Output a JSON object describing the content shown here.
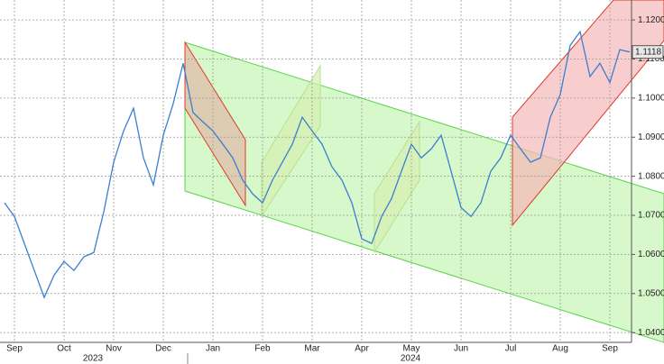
{
  "chart_data": {
    "type": "line",
    "categories": [
      null,
      "Sep",
      null,
      null,
      null,
      null,
      "Oct",
      null,
      null,
      null,
      null,
      "Nov",
      null,
      null,
      null,
      null,
      "Dec",
      null,
      null,
      null,
      null,
      "Jan",
      null,
      null,
      null,
      null,
      "Feb",
      null,
      null,
      null,
      null,
      "Mar",
      null,
      null,
      null,
      null,
      "Apr",
      null,
      null,
      null,
      null,
      "May",
      null,
      null,
      null,
      null,
      "Jun",
      null,
      null,
      null,
      null,
      "Jul",
      null,
      null,
      null,
      null,
      "Aug",
      null,
      null,
      null,
      null,
      "Sep",
      null,
      null
    ],
    "years": [
      "2023",
      "2024"
    ],
    "series": [
      {
        "color": "#3a7fd0",
        "values": [
          1.0732,
          1.0697,
          1.0628,
          1.0559,
          1.049,
          1.0547,
          1.0582,
          1.0559,
          1.0594,
          1.0605,
          1.0709,
          1.0836,
          1.0916,
          1.0974,
          1.0847,
          1.0778,
          1.0905,
          1.0986,
          1.1089,
          1.0963,
          1.0939,
          1.0916,
          1.0882,
          1.0847,
          1.079,
          1.0755,
          1.0732,
          1.079,
          1.0836,
          1.0882,
          1.0951,
          1.0916,
          1.0882,
          1.0824,
          1.079,
          1.0732,
          1.064,
          1.0628,
          1.0697,
          1.0743,
          1.0813,
          1.0882,
          1.0847,
          1.087,
          1.0905,
          1.0813,
          1.072,
          1.0697,
          1.0732,
          1.0813,
          1.0847,
          1.0905,
          1.087,
          1.0836,
          1.0847,
          1.0951,
          1.1009,
          1.1135,
          1.117,
          1.1055,
          1.1089,
          1.104,
          1.1124,
          1.1118
        ]
      }
    ],
    "last_label": "1.1118",
    "ylim": [
      1.0375,
      1.1251
    ],
    "yticks": [
      {
        "value": 1.04,
        "label": "1.0400"
      },
      {
        "value": 1.05,
        "label": "1.0500"
      },
      {
        "value": 1.06,
        "label": "1.0600"
      },
      {
        "value": 1.07,
        "label": "1.0700"
      },
      {
        "value": 1.08,
        "label": "1.0800"
      },
      {
        "value": 1.09,
        "label": "1.0900"
      },
      {
        "value": 1.1,
        "label": "1.1000"
      },
      {
        "value": 1.11,
        "label": "1.1100"
      },
      {
        "value": 1.12,
        "label": "1.1200"
      }
    ],
    "grid": true
  }
}
